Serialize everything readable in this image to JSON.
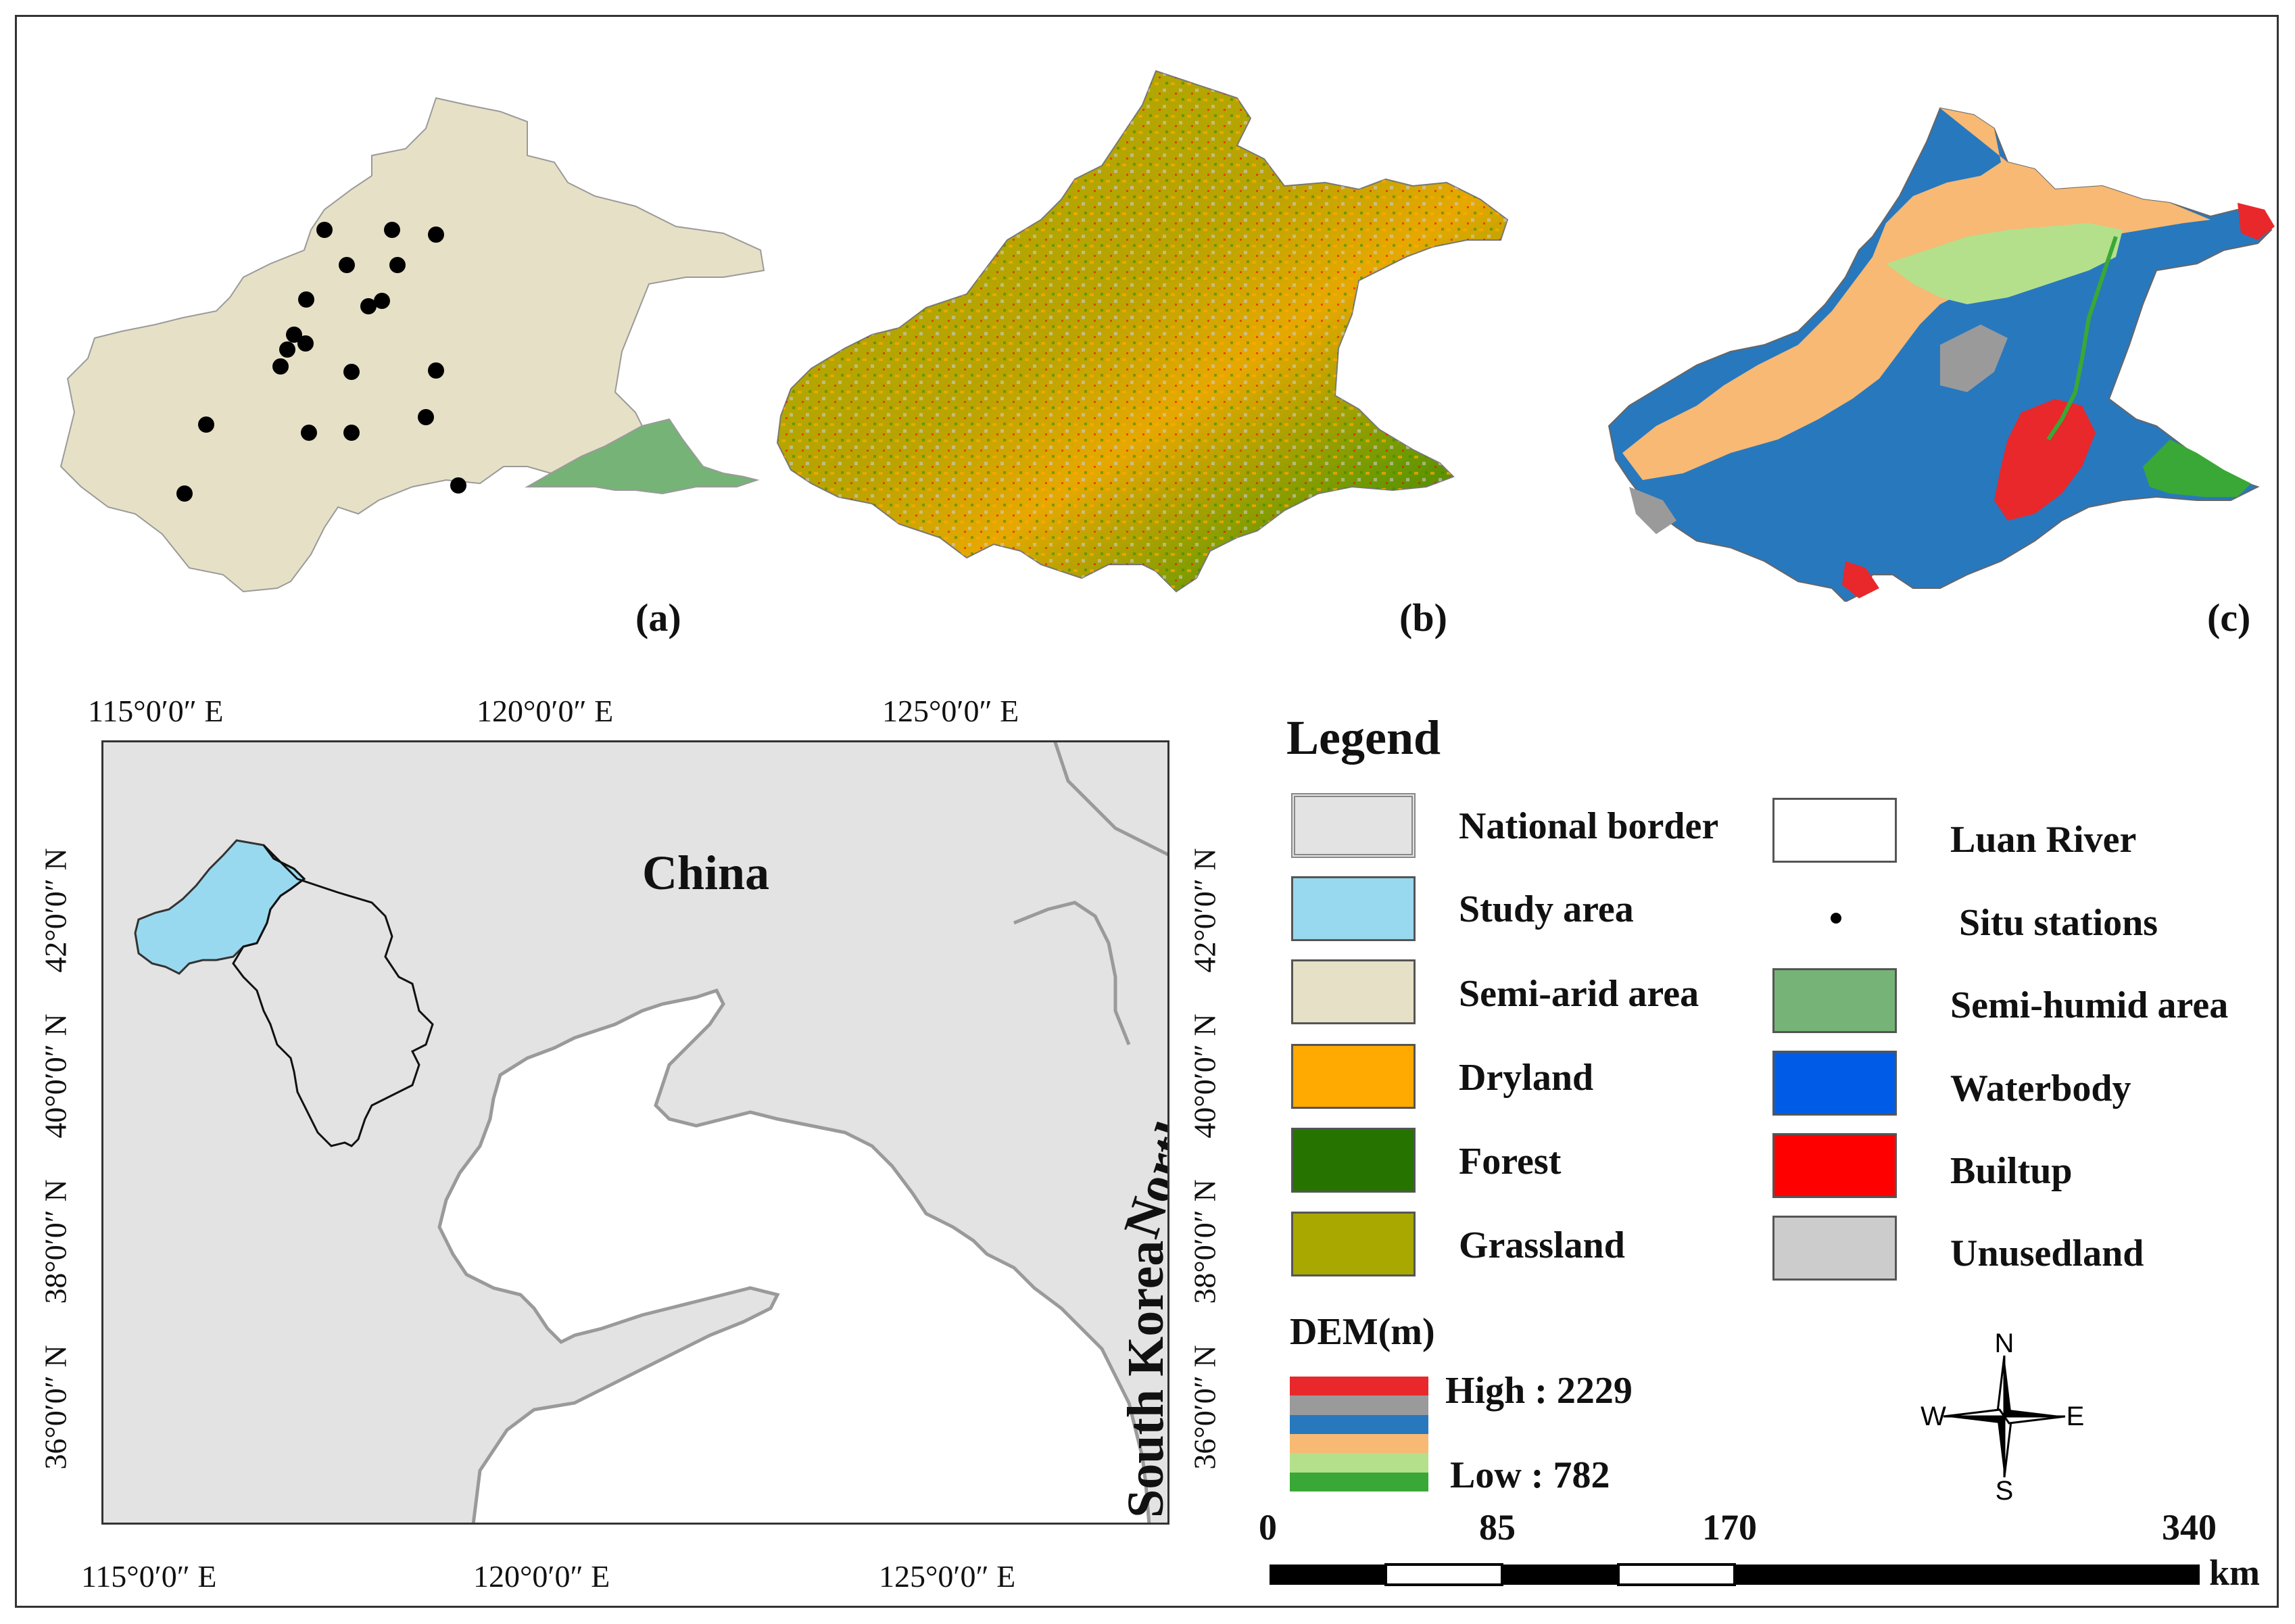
{
  "panels": [
    {
      "label": "(a)"
    },
    {
      "label": "(b)"
    },
    {
      "label": "(c)"
    }
  ],
  "locator": {
    "top_ticks": [
      "115°0′0″ E",
      "120°0′0″ E",
      "125°0′0″ E"
    ],
    "bottom_ticks": [
      "115°0′0″ E",
      "120°0′0″ E",
      "125°0′0″ E"
    ],
    "left_ticks": [
      "42°0′0″ N",
      "40°0′0″ N",
      "38°0′0″ N",
      "36°0′0″ N"
    ],
    "right_ticks": [
      "42°0′0″ N",
      "40°0′0″ N",
      "38°0′0″ N",
      "36°0′0″ N"
    ],
    "labels": {
      "china": "China",
      "north_korea": "North Korea",
      "south_korea": "South Korea"
    }
  },
  "legend": {
    "title": "Legend",
    "left_items": [
      {
        "label": "National border",
        "color": "#e3e3e3"
      },
      {
        "label": "Study area",
        "color": "#99d9ef"
      },
      {
        "label": "Semi-arid area",
        "color": "#e6e1c6"
      },
      {
        "label": "Dryland",
        "color": "#ffaa00"
      },
      {
        "label": "Forest",
        "color": "#267300"
      },
      {
        "label": "Grassland",
        "color": "#a8a800"
      }
    ],
    "right_items": [
      {
        "label": "Luan River",
        "color": "#ffffff"
      },
      {
        "label": "Situ stations",
        "color": "#000000"
      },
      {
        "label": "Semi-humid area",
        "color": "#76b377"
      },
      {
        "label": "Waterbody",
        "color": "#005ce6"
      },
      {
        "label": "Builtup",
        "color": "#ff0000"
      },
      {
        "label": "Unusedland",
        "color": "#cccccc"
      }
    ],
    "dem": {
      "title": "DEM(m)",
      "high": "High : 2229",
      "low": "Low : 782",
      "colors": [
        "#e8282a",
        "#9a9a9a",
        "#2878be",
        "#f7b974",
        "#b4e08c",
        "#3aa836"
      ]
    }
  },
  "scale_bar": {
    "ticks": [
      "0",
      "85",
      "170",
      "340"
    ],
    "unit": "km"
  },
  "compass": {
    "n": "N",
    "s": "S",
    "e": "E",
    "w": "W"
  }
}
